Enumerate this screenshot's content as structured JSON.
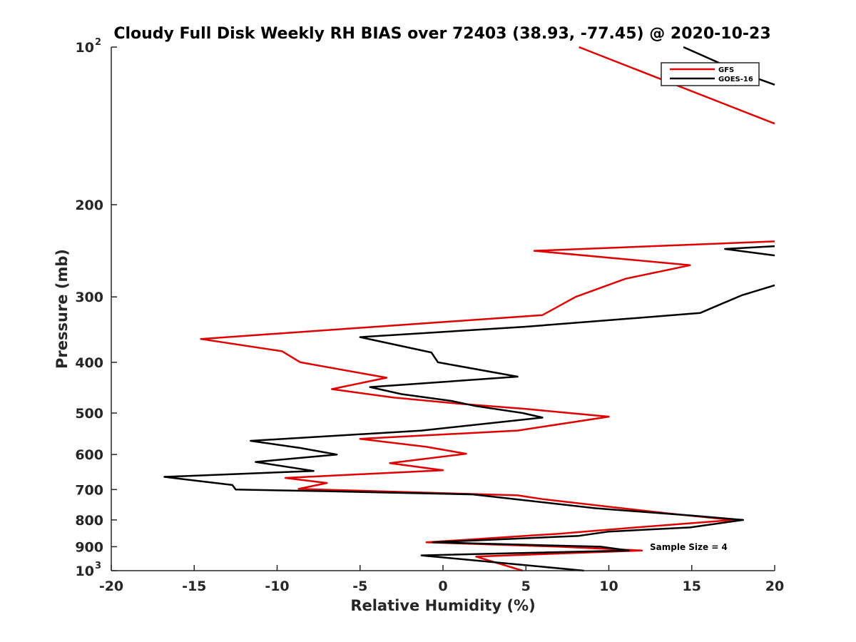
{
  "chart_data": {
    "type": "line",
    "title": "Cloudy Full Disk Weekly RH BIAS over 72403 (38.93, -77.45) @ 2020-10-23",
    "xlabel": "Relative Humidity (%)",
    "ylabel": "Pressure (mb)",
    "xlim": [
      -20,
      20
    ],
    "ylim": [
      100,
      1000
    ],
    "y_scale": "log",
    "y_reversed": true,
    "x_ticks": [
      "-20",
      "-15",
      "-10",
      "-5",
      "0",
      "5",
      "10",
      "15",
      "20"
    ],
    "y_ticks": [
      {
        "value": 100,
        "base": "10",
        "exp": "2"
      },
      {
        "value": 200,
        "base": "200",
        "exp": ""
      },
      {
        "value": 300,
        "base": "300",
        "exp": ""
      },
      {
        "value": 400,
        "base": "400",
        "exp": ""
      },
      {
        "value": 500,
        "base": "500",
        "exp": ""
      },
      {
        "value": 600,
        "base": "600",
        "exp": ""
      },
      {
        "value": 700,
        "base": "700",
        "exp": ""
      },
      {
        "value": 800,
        "base": "800",
        "exp": ""
      },
      {
        "value": 900,
        "base": "900",
        "exp": ""
      },
      {
        "value": 1000,
        "base": "10",
        "exp": "3"
      }
    ],
    "legend_position": "top-right",
    "annotation": "Sample Size = 4",
    "series": [
      {
        "name": "GFS",
        "color": "#e00000",
        "points": [
          [
            8.2,
            100
          ],
          [
            20,
            140
          ],
          [
            null,
            null
          ],
          [
            20,
            235
          ],
          [
            5.5,
            245
          ],
          [
            14.9,
            261
          ],
          [
            11,
            277
          ],
          [
            8,
            300
          ],
          [
            6,
            325
          ],
          [
            -14.6,
            361
          ],
          [
            -9.7,
            381
          ],
          [
            -8.6,
            400
          ],
          [
            -3.4,
            428
          ],
          [
            -6.7,
            450
          ],
          [
            -3,
            467
          ],
          [
            1,
            480
          ],
          [
            5,
            491
          ],
          [
            10,
            508
          ],
          [
            4.5,
            540
          ],
          [
            -5,
            560
          ],
          [
            -1,
            580
          ],
          [
            1.4,
            598
          ],
          [
            -3.2,
            623
          ],
          [
            0,
            643
          ],
          [
            -9.5,
            665
          ],
          [
            -7,
            680
          ],
          [
            -8.7,
            698
          ],
          [
            -6,
            702
          ],
          [
            4.5,
            718
          ],
          [
            6,
            730
          ],
          [
            10,
            755
          ],
          [
            14,
            780
          ],
          [
            17.5,
            800
          ],
          [
            12,
            825
          ],
          [
            9,
            840
          ],
          [
            7,
            850
          ],
          [
            -1,
            883
          ],
          [
            7,
            900
          ],
          [
            12,
            915
          ],
          [
            2,
            940
          ],
          [
            4.8,
            1000
          ]
        ]
      },
      {
        "name": "GOES-16",
        "color": "#000000",
        "points": [
          [
            14.5,
            100
          ],
          [
            18,
            112
          ],
          [
            20,
            118
          ],
          [
            null,
            null
          ],
          [
            20,
            250
          ],
          [
            17,
            243
          ],
          [
            20,
            240
          ],
          [
            null,
            null
          ],
          [
            20,
            285
          ],
          [
            18,
            298
          ],
          [
            15.5,
            322
          ],
          [
            5,
            342
          ],
          [
            -5,
            358
          ],
          [
            -0.7,
            383
          ],
          [
            -0.3,
            400
          ],
          [
            4.5,
            426
          ],
          [
            -4.4,
            446
          ],
          [
            -2.5,
            460
          ],
          [
            0.5,
            474
          ],
          [
            2,
            485
          ],
          [
            4.8,
            500
          ],
          [
            6,
            510
          ],
          [
            -1.3,
            540
          ],
          [
            -11.6,
            565
          ],
          [
            -8.6,
            583
          ],
          [
            -6.4,
            600
          ],
          [
            -11.3,
            620
          ],
          [
            -7.8,
            645
          ],
          [
            -16.8,
            662
          ],
          [
            -12.7,
            686
          ],
          [
            -12.5,
            700
          ],
          [
            -7,
            705
          ],
          [
            1.8,
            715
          ],
          [
            9.2,
            760
          ],
          [
            15,
            785
          ],
          [
            18.1,
            800
          ],
          [
            14.9,
            827
          ],
          [
            10,
            842
          ],
          [
            8.2,
            858
          ],
          [
            -0.6,
            883
          ],
          [
            9.5,
            900
          ],
          [
            11.2,
            915
          ],
          [
            -1.3,
            935
          ],
          [
            8.5,
            1000
          ]
        ]
      }
    ]
  }
}
